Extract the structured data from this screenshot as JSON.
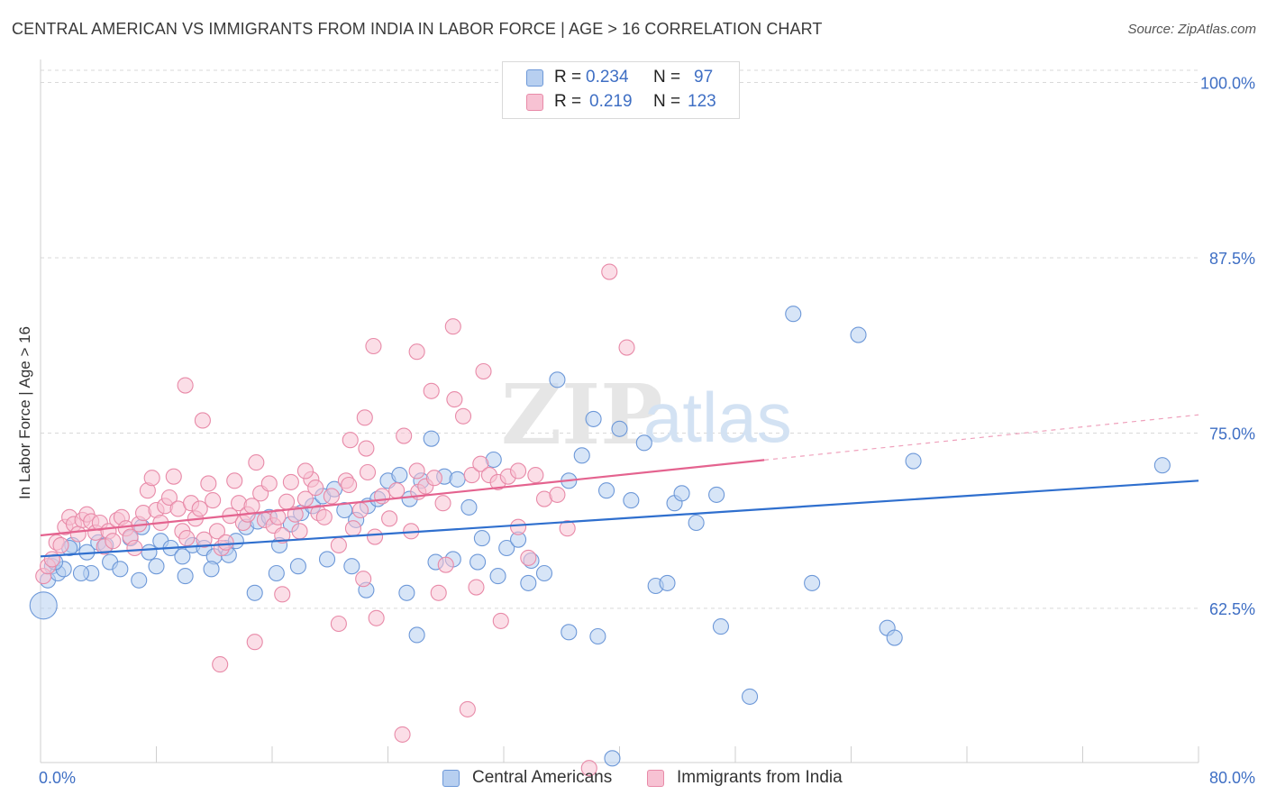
{
  "title": "CENTRAL AMERICAN VS IMMIGRANTS FROM INDIA IN LABOR FORCE | AGE > 16 CORRELATION CHART",
  "source": "Source: ZipAtlas.com",
  "watermark": {
    "zip": "ZIP",
    "atlas": "atlas"
  },
  "legend": {
    "rows": [
      {
        "r_label": "R =",
        "r_value": "0.234",
        "n_label": "N =",
        "n_value": "97"
      },
      {
        "r_label": "R =",
        "r_value": "0.219",
        "n_label": "N =",
        "n_value": "123"
      }
    ]
  },
  "colors": {
    "blue_fill": "#b7cff0",
    "blue_stroke": "#6d98d8",
    "blue_line": "#2f6fce",
    "pink_fill": "#f7c2d3",
    "pink_stroke": "#e88aa8",
    "pink_line": "#e4638f",
    "axis_text": "#3f6fc4",
    "grid": "#d9d9d9"
  },
  "chart_data": {
    "type": "scatter",
    "title": "CENTRAL AMERICAN VS IMMIGRANTS FROM INDIA IN LABOR FORCE | AGE > 16 CORRELATION CHART",
    "xlabel": "",
    "ylabel": "In Labor Force | Age > 16",
    "xlim": [
      0,
      80
    ],
    "ylim": [
      51.5,
      101
    ],
    "x_tick_labels": [
      "0.0%",
      "80.0%"
    ],
    "y_ticks": [
      62.5,
      75.0,
      87.5,
      100.0
    ],
    "y_tick_labels": [
      "62.5%",
      "75.0%",
      "87.5%",
      "100.0%"
    ],
    "grid": true,
    "legend_position": "top-center and bottom",
    "series": [
      {
        "name": "Central Americans",
        "R": 0.234,
        "N": 97,
        "trend": {
          "x": [
            0,
            80
          ],
          "y": [
            66.2,
            71.6
          ],
          "dashed_from": null
        },
        "points": [
          [
            0.2,
            62.7
          ],
          [
            0.5,
            64.5
          ],
          [
            0.8,
            65.5
          ],
          [
            1.2,
            65.0
          ],
          [
            1.6,
            65.3
          ],
          [
            2.2,
            67.0
          ],
          [
            3.2,
            66.5
          ],
          [
            4.0,
            67.2
          ],
          [
            4.8,
            65.8
          ],
          [
            5.5,
            65.3
          ],
          [
            2.0,
            66.8
          ],
          [
            3.5,
            65.0
          ],
          [
            6.2,
            67.5
          ],
          [
            7.0,
            68.3
          ],
          [
            7.5,
            66.5
          ],
          [
            8.3,
            67.3
          ],
          [
            9.0,
            66.8
          ],
          [
            9.8,
            66.2
          ],
          [
            10.5,
            67.0
          ],
          [
            11.3,
            66.8
          ],
          [
            12.0,
            66.2
          ],
          [
            12.8,
            66.8
          ],
          [
            13.5,
            67.3
          ],
          [
            14.2,
            68.3
          ],
          [
            15.0,
            68.7
          ],
          [
            15.8,
            69.0
          ],
          [
            16.5,
            67.0
          ],
          [
            17.3,
            68.5
          ],
          [
            18.0,
            69.3
          ],
          [
            18.8,
            69.8
          ],
          [
            19.5,
            70.5
          ],
          [
            20.3,
            71.0
          ],
          [
            21.0,
            69.5
          ],
          [
            21.8,
            68.8
          ],
          [
            22.6,
            69.8
          ],
          [
            23.3,
            70.3
          ],
          [
            24.0,
            71.6
          ],
          [
            24.8,
            72.0
          ],
          [
            25.5,
            70.3
          ],
          [
            26.3,
            71.6
          ],
          [
            27.0,
            74.6
          ],
          [
            27.9,
            71.9
          ],
          [
            28.8,
            71.7
          ],
          [
            29.6,
            69.7
          ],
          [
            30.5,
            67.5
          ],
          [
            31.3,
            73.1
          ],
          [
            32.2,
            66.8
          ],
          [
            33.0,
            67.4
          ],
          [
            33.9,
            65.9
          ],
          [
            34.8,
            65.0
          ],
          [
            35.7,
            78.8
          ],
          [
            36.5,
            71.6
          ],
          [
            37.4,
            73.4
          ],
          [
            38.2,
            76.0
          ],
          [
            39.1,
            70.9
          ],
          [
            40.0,
            75.3
          ],
          [
            40.8,
            70.2
          ],
          [
            41.7,
            74.3
          ],
          [
            42.5,
            64.1
          ],
          [
            43.3,
            64.3
          ],
          [
            43.8,
            70.0
          ],
          [
            44.3,
            70.7
          ],
          [
            45.3,
            68.6
          ],
          [
            46.7,
            70.6
          ],
          [
            49.0,
            56.2
          ],
          [
            52.0,
            83.5
          ],
          [
            53.3,
            64.3
          ],
          [
            56.5,
            82.0
          ],
          [
            58.5,
            61.1
          ],
          [
            59.0,
            60.4
          ],
          [
            60.3,
            73.0
          ],
          [
            77.5,
            72.7
          ],
          [
            39.5,
            51.8
          ],
          [
            36.5,
            60.8
          ],
          [
            38.5,
            60.5
          ],
          [
            26.0,
            60.6
          ],
          [
            47.0,
            61.2
          ],
          [
            2.8,
            65.0
          ],
          [
            1.0,
            65.8
          ],
          [
            4.5,
            67.0
          ],
          [
            6.8,
            64.5
          ],
          [
            8.0,
            65.5
          ],
          [
            10.0,
            64.8
          ],
          [
            11.8,
            65.3
          ],
          [
            13.0,
            66.3
          ],
          [
            14.8,
            63.6
          ],
          [
            16.3,
            65.0
          ],
          [
            17.8,
            65.5
          ],
          [
            19.8,
            66.0
          ],
          [
            21.5,
            65.5
          ],
          [
            22.5,
            63.8
          ],
          [
            25.3,
            63.6
          ],
          [
            27.3,
            65.8
          ],
          [
            28.5,
            66.0
          ],
          [
            30.2,
            65.8
          ],
          [
            31.6,
            64.8
          ],
          [
            33.7,
            64.3
          ]
        ]
      },
      {
        "name": "Immigrants from India",
        "R": 0.219,
        "N": 123,
        "trend": {
          "x": [
            0,
            80
          ],
          "y": [
            67.7,
            76.3
          ],
          "dashed_from": 50
        },
        "points": [
          [
            0.2,
            64.8
          ],
          [
            0.5,
            65.5
          ],
          [
            0.8,
            66.0
          ],
          [
            1.1,
            67.2
          ],
          [
            1.4,
            67.0
          ],
          [
            1.7,
            68.3
          ],
          [
            2.0,
            69.0
          ],
          [
            2.3,
            68.5
          ],
          [
            2.6,
            67.8
          ],
          [
            2.9,
            68.8
          ],
          [
            3.2,
            69.2
          ],
          [
            3.5,
            68.7
          ],
          [
            3.8,
            67.9
          ],
          [
            4.1,
            68.6
          ],
          [
            4.4,
            66.9
          ],
          [
            4.7,
            68.0
          ],
          [
            5.0,
            67.3
          ],
          [
            5.3,
            68.8
          ],
          [
            5.6,
            69.0
          ],
          [
            5.9,
            68.2
          ],
          [
            6.2,
            67.6
          ],
          [
            6.5,
            66.8
          ],
          [
            6.8,
            68.5
          ],
          [
            7.1,
            69.3
          ],
          [
            7.4,
            70.9
          ],
          [
            7.7,
            71.8
          ],
          [
            8.0,
            69.5
          ],
          [
            8.3,
            68.6
          ],
          [
            8.6,
            69.8
          ],
          [
            8.9,
            70.4
          ],
          [
            9.2,
            71.9
          ],
          [
            9.5,
            69.6
          ],
          [
            9.8,
            68.0
          ],
          [
            10.1,
            67.5
          ],
          [
            10.4,
            70.0
          ],
          [
            10.7,
            68.9
          ],
          [
            11.0,
            69.6
          ],
          [
            11.3,
            67.4
          ],
          [
            11.6,
            71.4
          ],
          [
            11.9,
            70.2
          ],
          [
            12.2,
            68.0
          ],
          [
            12.5,
            66.8
          ],
          [
            12.8,
            67.2
          ],
          [
            13.1,
            69.1
          ],
          [
            13.4,
            71.6
          ],
          [
            13.7,
            70.0
          ],
          [
            14.0,
            68.6
          ],
          [
            14.3,
            69.2
          ],
          [
            14.6,
            69.8
          ],
          [
            14.9,
            72.9
          ],
          [
            15.2,
            70.7
          ],
          [
            15.5,
            68.8
          ],
          [
            15.8,
            71.4
          ],
          [
            16.1,
            68.4
          ],
          [
            16.4,
            69.0
          ],
          [
            16.7,
            67.7
          ],
          [
            17.0,
            70.1
          ],
          [
            17.3,
            71.5
          ],
          [
            17.6,
            69.2
          ],
          [
            17.9,
            68.0
          ],
          [
            18.3,
            70.3
          ],
          [
            18.7,
            71.7
          ],
          [
            19.2,
            69.3
          ],
          [
            19.6,
            69.0
          ],
          [
            20.1,
            70.5
          ],
          [
            20.6,
            67.0
          ],
          [
            21.1,
            71.6
          ],
          [
            21.6,
            68.2
          ],
          [
            22.1,
            69.5
          ],
          [
            22.6,
            72.2
          ],
          [
            23.1,
            67.6
          ],
          [
            23.6,
            70.5
          ],
          [
            24.1,
            68.9
          ],
          [
            24.6,
            70.9
          ],
          [
            25.1,
            74.8
          ],
          [
            25.6,
            68.0
          ],
          [
            26.1,
            70.8
          ],
          [
            26.6,
            71.2
          ],
          [
            27.2,
            71.8
          ],
          [
            27.8,
            70.0
          ],
          [
            28.5,
            82.6
          ],
          [
            29.2,
            76.2
          ],
          [
            29.8,
            72.0
          ],
          [
            30.4,
            72.8
          ],
          [
            31.0,
            72.0
          ],
          [
            31.6,
            71.5
          ],
          [
            32.3,
            71.9
          ],
          [
            33.0,
            72.3
          ],
          [
            34.2,
            72.0
          ],
          [
            34.8,
            70.3
          ],
          [
            35.7,
            70.6
          ],
          [
            36.4,
            68.2
          ],
          [
            39.3,
            86.5
          ],
          [
            40.5,
            81.1
          ],
          [
            10.0,
            78.4
          ],
          [
            11.2,
            75.9
          ],
          [
            14.8,
            60.1
          ],
          [
            16.7,
            63.5
          ],
          [
            18.3,
            72.3
          ],
          [
            19.0,
            71.1
          ],
          [
            20.6,
            61.4
          ],
          [
            21.3,
            71.3
          ],
          [
            22.3,
            64.6
          ],
          [
            23.2,
            61.8
          ],
          [
            23.0,
            81.2
          ],
          [
            22.4,
            76.1
          ],
          [
            21.4,
            74.5
          ],
          [
            22.5,
            73.9
          ],
          [
            26.0,
            80.8
          ],
          [
            26.0,
            72.3
          ],
          [
            27.0,
            78.0
          ],
          [
            27.5,
            63.6
          ],
          [
            28.6,
            77.4
          ],
          [
            28.0,
            65.6
          ],
          [
            30.6,
            79.4
          ],
          [
            30.1,
            64.0
          ],
          [
            31.8,
            61.6
          ],
          [
            33.0,
            68.3
          ],
          [
            33.7,
            66.1
          ],
          [
            37.9,
            51.1
          ],
          [
            29.5,
            55.3
          ],
          [
            25.0,
            53.5
          ],
          [
            12.4,
            58.5
          ]
        ]
      }
    ]
  }
}
